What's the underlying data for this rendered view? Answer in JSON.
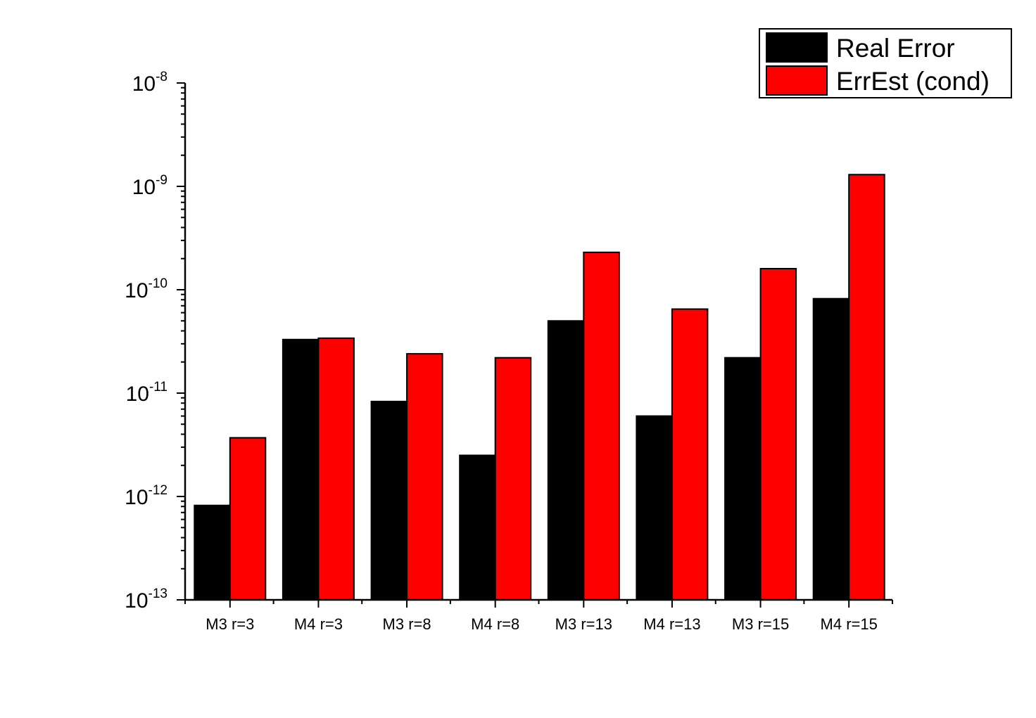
{
  "chart_data": {
    "type": "bar",
    "yscale": "log",
    "ylim": [
      1e-13,
      1e-08
    ],
    "y_ticks": [
      {
        "base": "10",
        "exp": "-8"
      },
      {
        "base": "10",
        "exp": "-9"
      },
      {
        "base": "10",
        "exp": "-10"
      },
      {
        "base": "10",
        "exp": "-11"
      },
      {
        "base": "10",
        "exp": "-12"
      },
      {
        "base": "10",
        "exp": "-13"
      }
    ],
    "categories": [
      "M3 r=3",
      "M4 r=3",
      "M3 r=8",
      "M4 r=8",
      "M3 r=13",
      "M4 r=13",
      "M3 r=15",
      "M4 r=15"
    ],
    "series": [
      {
        "name": "Real Error",
        "color": "#000000",
        "values": [
          8.2e-13,
          3.3e-11,
          8.3e-12,
          2.5e-12,
          5e-11,
          6e-12,
          2.2e-11,
          8.2e-11
        ]
      },
      {
        "name": "ErrEst (cond)",
        "color": "#ff0000",
        "values": [
          3.7e-12,
          3.4e-11,
          2.4e-11,
          2.2e-11,
          2.3e-10,
          6.5e-11,
          1.6e-10,
          1.3e-09
        ]
      }
    ],
    "legend_position": "top-right",
    "grid": false,
    "title": "",
    "xlabel": "",
    "ylabel": ""
  }
}
